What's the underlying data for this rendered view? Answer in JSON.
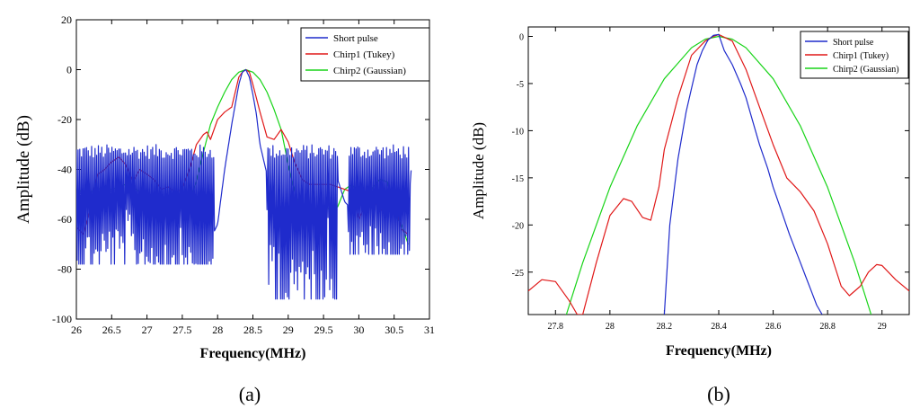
{
  "chart_data": [
    {
      "type": "line",
      "caption": "(a)",
      "xlabel": "Frequency(MHz)",
      "ylabel": "Amplitude (dB)",
      "xlim": [
        26,
        31
      ],
      "ylim": [
        -100,
        20
      ],
      "xticks": [
        26,
        26.5,
        27,
        27.5,
        28,
        28.5,
        29,
        29.5,
        30,
        30.5,
        31
      ],
      "yticks": [
        -100,
        -80,
        -60,
        -40,
        -20,
        0,
        20
      ],
      "legend_position": "top-right",
      "colors": {
        "short": "#1f2bcc",
        "tukey": "#e01818",
        "gauss": "#18d418"
      },
      "series": [
        {
          "name": "Short pulse",
          "key": "short",
          "x": [
            26.0,
            26.1,
            26.2,
            26.3,
            26.4,
            26.5,
            26.6,
            26.7,
            26.8,
            26.9,
            27.0,
            27.1,
            27.2,
            27.3,
            27.4,
            27.5,
            27.6,
            27.7,
            27.8,
            27.9,
            28.0,
            28.1,
            28.2,
            28.3,
            28.35,
            28.4,
            28.45,
            28.5,
            28.55,
            28.6,
            28.7,
            28.8,
            28.9,
            29.0,
            29.1,
            29.2,
            29.3,
            29.4,
            29.5,
            29.6,
            29.7,
            29.8,
            29.9,
            30.0,
            30.1,
            30.2,
            30.3,
            30.4,
            30.5,
            30.6,
            30.7,
            30.75
          ],
          "y": [
            -65,
            -58,
            -52,
            -57,
            -52,
            -50,
            -55,
            -47,
            -52,
            -50,
            -55,
            -53,
            -60,
            -55,
            -62,
            -53,
            -61,
            -65,
            -72,
            -68,
            -62,
            -40,
            -22,
            -6,
            -1,
            0,
            -3,
            -10,
            -18,
            -30,
            -42,
            -50,
            -60,
            -75,
            -62,
            -58,
            -65,
            -62,
            -52,
            -45,
            -44,
            -53,
            -56,
            -54,
            -57,
            -52,
            -55,
            -57,
            -60,
            -60,
            -58,
            -36
          ],
          "noise": [
            {
              "from": 26.0,
              "to": 27.95,
              "top": -36,
              "bottom": -78
            },
            {
              "from": 28.7,
              "to": 29.7,
              "top": -36,
              "bottom": -92
            },
            {
              "from": 29.85,
              "to": 30.72,
              "top": -36,
              "bottom": -74
            }
          ]
        },
        {
          "name": "Chirp1 (Tukey)",
          "key": "tukey",
          "x": [
            26.0,
            26.1,
            26.2,
            26.3,
            26.4,
            26.5,
            26.6,
            26.7,
            26.8,
            26.9,
            27.0,
            27.1,
            27.2,
            27.3,
            27.4,
            27.5,
            27.6,
            27.7,
            27.8,
            27.85,
            27.9,
            28.0,
            28.1,
            28.2,
            28.3,
            28.35,
            28.4,
            28.45,
            28.5,
            28.6,
            28.7,
            28.8,
            28.9,
            29.0,
            29.1,
            29.2,
            29.3,
            29.4,
            29.5,
            29.6,
            29.7,
            29.8,
            29.9,
            30.0,
            30.1,
            30.2,
            30.3,
            30.4,
            30.5,
            30.6,
            30.7
          ],
          "y": [
            -63,
            -66,
            -55,
            -42,
            -40,
            -37,
            -35,
            -38,
            -45,
            -40,
            -42,
            -44,
            -48,
            -47,
            -49,
            -48,
            -40,
            -30,
            -26,
            -25,
            -28,
            -20,
            -17,
            -15,
            -3,
            -1,
            0,
            -1,
            -6,
            -17,
            -27,
            -28,
            -24,
            -29,
            -38,
            -44,
            -46,
            -46,
            -46,
            -46,
            -47,
            -48,
            -49,
            -60,
            -54,
            -51,
            -57,
            -53,
            -53,
            -64,
            -66
          ]
        },
        {
          "name": "Chirp2 (Gaussian)",
          "key": "gauss",
          "x": [
            26.0,
            26.1,
            26.2,
            26.3,
            26.4,
            26.5,
            26.6,
            26.7,
            26.8,
            26.9,
            27.0,
            27.1,
            27.2,
            27.3,
            27.4,
            27.5,
            27.6,
            27.7,
            27.8,
            27.9,
            28.0,
            28.1,
            28.2,
            28.3,
            28.4,
            28.5,
            28.6,
            28.7,
            28.8,
            28.9,
            29.0,
            29.1,
            29.2,
            29.3,
            29.4,
            29.5,
            29.6,
            29.7,
            29.8,
            29.9,
            30.0,
            30.1,
            30.2,
            30.3,
            30.4,
            30.5,
            30.6,
            30.7
          ],
          "y": [
            -48,
            -49,
            -49,
            -48,
            -47,
            -48,
            -47,
            -46,
            -47,
            -49,
            -52,
            -56,
            -58,
            -57,
            -55,
            -54,
            -52,
            -45,
            -33,
            -22,
            -15,
            -9,
            -4,
            -1,
            0,
            -1,
            -4,
            -9,
            -16,
            -24,
            -38,
            -50,
            -57,
            -59,
            -58,
            -55,
            -56,
            -55,
            -48,
            -46,
            -50,
            -52,
            -47,
            -44,
            -45,
            -58,
            -62,
            -70
          ]
        }
      ]
    },
    {
      "type": "line",
      "caption": "(b)",
      "xlabel": "Frequency(MHz)",
      "ylabel": "Amplitude (dB)",
      "xlim": [
        27.7,
        29.1
      ],
      "ylim": [
        -29.5,
        1
      ],
      "xticks": [
        27.8,
        28,
        28.2,
        28.4,
        28.6,
        28.8,
        29
      ],
      "yticks": [
        -25,
        -20,
        -15,
        -10,
        -5,
        0
      ],
      "legend_position": "top-right",
      "colors": {
        "short": "#1f2bcc",
        "tukey": "#e01818",
        "gauss": "#18d418"
      },
      "series": [
        {
          "name": "Short pulse",
          "key": "short",
          "x": [
            28.2,
            28.22,
            28.25,
            28.28,
            28.3,
            28.32,
            28.34,
            28.36,
            28.38,
            28.4,
            28.42,
            28.45,
            28.48,
            28.5,
            28.52,
            28.55,
            28.58,
            28.6,
            28.63,
            28.66,
            28.7,
            28.72,
            28.74,
            28.76,
            28.78
          ],
          "y": [
            -29.5,
            -20,
            -13,
            -8,
            -5.5,
            -3,
            -1.5,
            -0.4,
            0.1,
            0.2,
            -1.5,
            -3,
            -5,
            -6.5,
            -8.5,
            -11.5,
            -14,
            -16,
            -18.5,
            -21,
            -24,
            -25.5,
            -27,
            -28.5,
            -29.5
          ]
        },
        {
          "name": "Chirp1 (Tukey)",
          "key": "tukey",
          "x": [
            27.7,
            27.75,
            27.8,
            27.85,
            27.88,
            27.9,
            27.95,
            28.0,
            28.05,
            28.08,
            28.12,
            28.15,
            28.18,
            28.2,
            28.25,
            28.3,
            28.35,
            28.38,
            28.4,
            28.45,
            28.5,
            28.55,
            28.6,
            28.65,
            28.7,
            28.75,
            28.8,
            28.85,
            28.88,
            28.92,
            28.95,
            28.98,
            29.0,
            29.05,
            29.1
          ],
          "y": [
            -27,
            -25.8,
            -26,
            -28,
            -29.5,
            -29.5,
            -24,
            -19,
            -17.2,
            -17.5,
            -19.2,
            -19.5,
            -16,
            -12,
            -6.5,
            -2,
            -0.5,
            0,
            0.2,
            -0.5,
            -3.5,
            -7.5,
            -11.5,
            -15,
            -16.5,
            -18.5,
            -22,
            -26.5,
            -27.5,
            -26.5,
            -25,
            -24.2,
            -24.3,
            -25.8,
            -27
          ]
        },
        {
          "name": "Chirp2 (Gaussian)",
          "key": "gauss",
          "x": [
            27.84,
            27.9,
            28.0,
            28.1,
            28.2,
            28.3,
            28.35,
            28.4,
            28.45,
            28.5,
            28.6,
            28.7,
            28.8,
            28.9,
            28.96
          ],
          "y": [
            -29.5,
            -24,
            -16,
            -9.5,
            -4.5,
            -1.2,
            -0.3,
            0,
            -0.3,
            -1.2,
            -4.5,
            -9.5,
            -16,
            -24,
            -29.5
          ]
        }
      ]
    }
  ]
}
